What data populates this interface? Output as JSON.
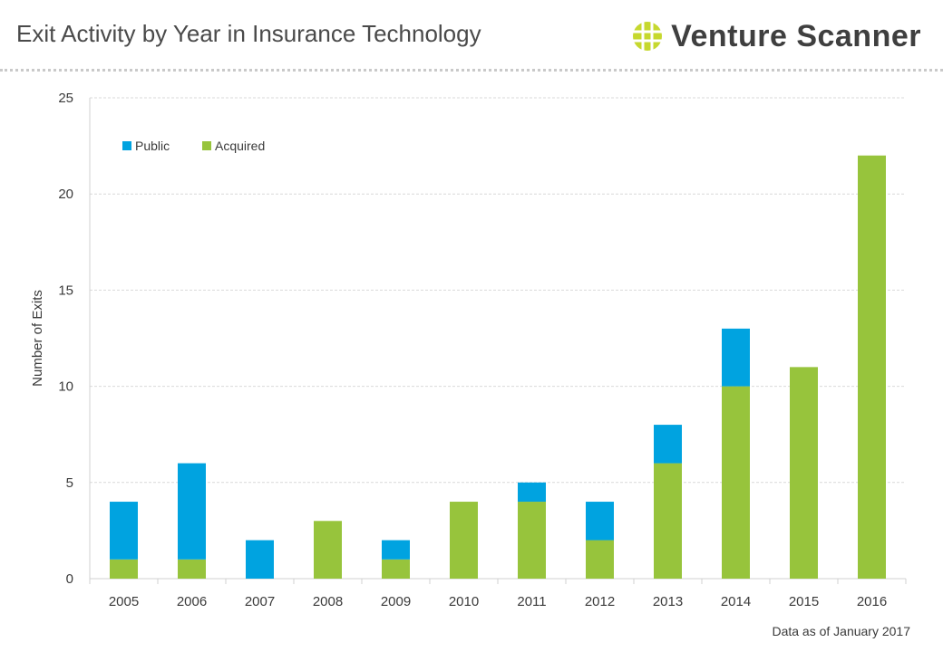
{
  "header": {
    "title": "Exit Activity by Year in Insurance Technology",
    "brand": "Venture Scanner"
  },
  "note": "Data as of January 2017",
  "colors": {
    "public": "#00a3e0",
    "acquired": "#97c43c",
    "grid": "#d9d9d9",
    "logo": "#c6d82e"
  },
  "chart_data": {
    "type": "bar",
    "stacked": true,
    "categories": [
      "2005",
      "2006",
      "2007",
      "2008",
      "2009",
      "2010",
      "2011",
      "2012",
      "2013",
      "2014",
      "2015",
      "2016"
    ],
    "series": [
      {
        "name": "Acquired",
        "values": [
          1,
          1,
          0,
          3,
          1,
          4,
          4,
          2,
          6,
          10,
          11,
          22
        ]
      },
      {
        "name": "Public",
        "values": [
          3,
          5,
          2,
          0,
          1,
          0,
          1,
          2,
          2,
          3,
          0,
          0
        ]
      }
    ],
    "ylabel": "Number of Exits",
    "xlabel": "",
    "ylim": [
      0,
      25
    ],
    "yticks": [
      0,
      5,
      10,
      15,
      20,
      25
    ],
    "grid": true,
    "legend": {
      "position": "top-left",
      "order": [
        "Public",
        "Acquired"
      ]
    }
  }
}
